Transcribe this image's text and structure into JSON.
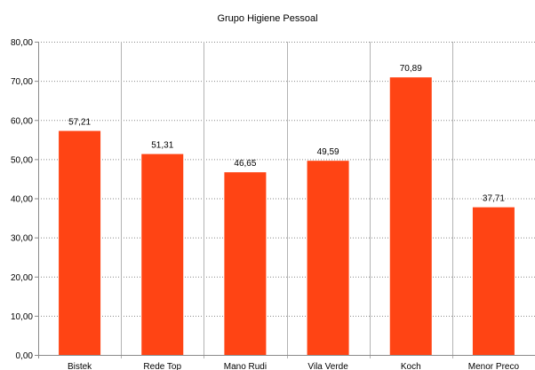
{
  "chart_data": {
    "type": "bar",
    "title": "Grupo Higiene Pessoal",
    "xlabel": "",
    "ylabel": "",
    "categories": [
      "Bistek",
      "Rede Top",
      "Mano Rudi",
      "Vila Verde",
      "Koch",
      "Menor Preco"
    ],
    "values": [
      57.21,
      51.31,
      46.65,
      49.59,
      70.89,
      37.71
    ],
    "value_labels": [
      "57,21",
      "51,31",
      "46,65",
      "49,59",
      "70,89",
      "37,71"
    ],
    "ylim": [
      0,
      80
    ],
    "yticks": [
      0,
      10,
      20,
      30,
      40,
      50,
      60,
      70,
      80
    ],
    "ytick_labels": [
      "0,00",
      "10,00",
      "20,00",
      "30,00",
      "40,00",
      "50,00",
      "60,00",
      "70,00",
      "80,00"
    ],
    "grid": true,
    "legend": "none",
    "bar_color": "#ff4414"
  }
}
